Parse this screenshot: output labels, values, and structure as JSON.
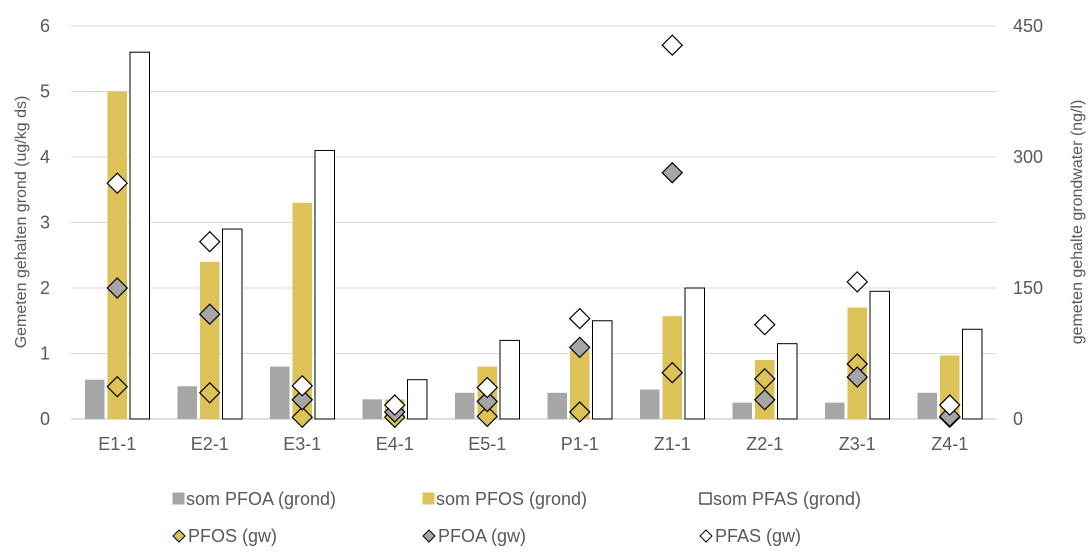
{
  "chart_data": {
    "type": "bar",
    "categories": [
      "E1-1",
      "E2-1",
      "E3-1",
      "E4-1",
      "E5-1",
      "P1-1",
      "Z1-1",
      "Z2-1",
      "Z3-1",
      "Z4-1"
    ],
    "ylabel_left": "Gemeten gehalten grond (ug/kg ds)",
    "ylabel_right": "gemeten gehalte grondwater (ng/l)",
    "ylim_left": [
      0,
      6
    ],
    "ylim_right": [
      0,
      450
    ],
    "yticks_left": [
      0,
      1,
      2,
      3,
      4,
      5,
      6
    ],
    "yticks_right": [
      0,
      150,
      300,
      450
    ],
    "yticks_left_labels": [
      "0",
      "1",
      "2",
      "3",
      "4",
      "5",
      "6"
    ],
    "yticks_right_labels": [
      "0",
      "150",
      "300",
      "450"
    ],
    "grid": true,
    "legend_position": "bottom",
    "bar_series": [
      {
        "name": "som PFOA (grond)",
        "color": "#a6a6a6",
        "stroke": "#a6a6a6",
        "values": [
          0.6,
          0.5,
          0.8,
          0.3,
          0.4,
          0.4,
          0.45,
          0.25,
          0.25,
          0.4
        ]
      },
      {
        "name": "som PFOS (grond)",
        "color": "#dcc257",
        "stroke": "#dcc257",
        "values": [
          5.0,
          2.4,
          3.3,
          0.3,
          0.8,
          1.05,
          1.57,
          0.9,
          1.7,
          0.97
        ]
      },
      {
        "name": "som PFAS (grond)",
        "color": "#ffffff",
        "stroke": "#000000",
        "values": [
          5.6,
          2.9,
          4.1,
          0.6,
          1.2,
          1.5,
          2.0,
          1.15,
          1.95,
          1.37
        ]
      }
    ],
    "marker_series": [
      {
        "name": "PFOS (gw)",
        "color": "#dcc257",
        "stroke": "#000000",
        "values": [
          37,
          30,
          2,
          2,
          3,
          8,
          53,
          46,
          63,
          2
        ]
      },
      {
        "name": "PFOA (gw)",
        "color": "#a6a6a6",
        "stroke": "#000000",
        "values": [
          150,
          120,
          22,
          8,
          20,
          82,
          282,
          22,
          48,
          3
        ]
      },
      {
        "name": "PFAS (gw)",
        "color": "#ffffff",
        "stroke": "#000000",
        "values": [
          270,
          203,
          38,
          16,
          36,
          115,
          428,
          108,
          157,
          16
        ]
      }
    ]
  }
}
